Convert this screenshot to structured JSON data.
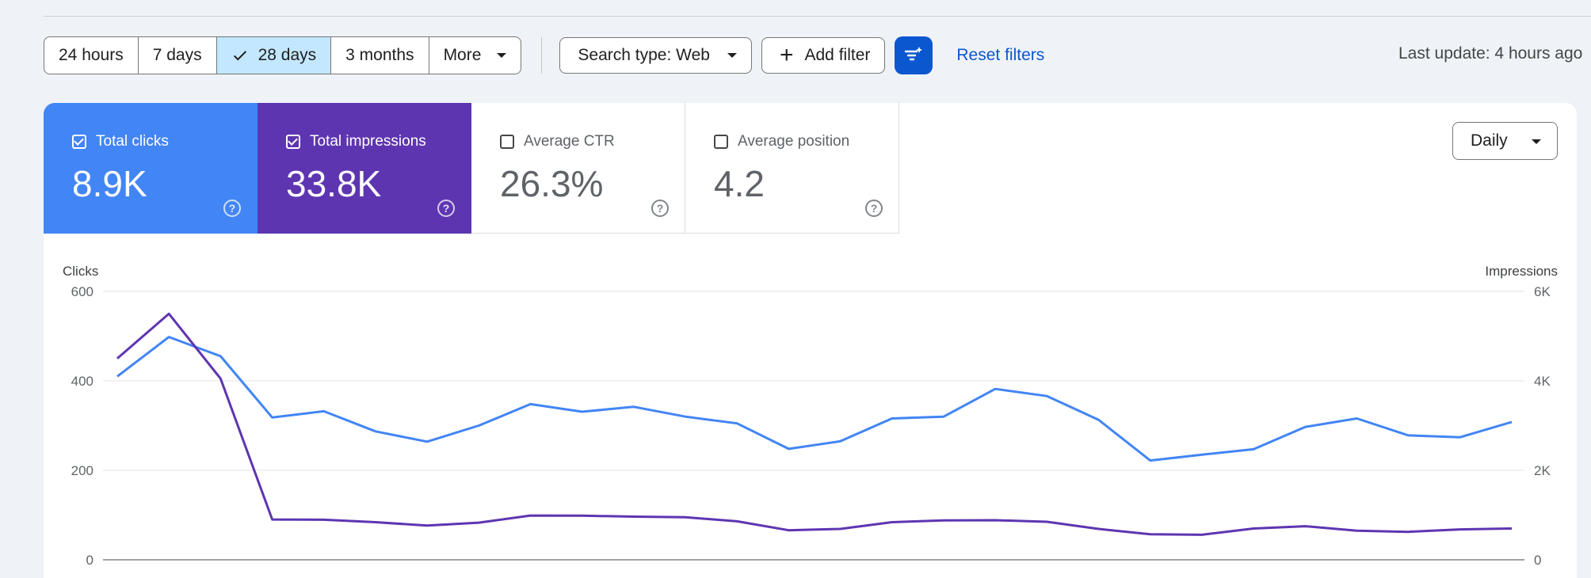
{
  "toolbar": {
    "ranges": [
      {
        "label": "24 hours",
        "active": false
      },
      {
        "label": "7 days",
        "active": false
      },
      {
        "label": "28 days",
        "active": true
      },
      {
        "label": "3 months",
        "active": false
      },
      {
        "label": "More",
        "active": false
      }
    ],
    "search_type": "Search type: Web",
    "add_filter": "Add filter",
    "reset_filters": "Reset filters",
    "last_update": "Last update: 4 hours ago"
  },
  "metrics": {
    "clicks": {
      "label": "Total clicks",
      "value": "8.9K",
      "checked": true,
      "color": "#4285f4"
    },
    "impressions": {
      "label": "Total impressions",
      "value": "33.8K",
      "checked": true,
      "color": "#5e35b1"
    },
    "ctr": {
      "label": "Average CTR",
      "value": "26.3%",
      "checked": false
    },
    "position": {
      "label": "Average position",
      "value": "4.2",
      "checked": false
    }
  },
  "granularity": "Daily",
  "chart_data": {
    "type": "line",
    "left_axis": {
      "title": "Clicks",
      "ticks": [
        "0",
        "200",
        "400",
        "600"
      ],
      "range": [
        0,
        600
      ]
    },
    "right_axis": {
      "title": "Impressions",
      "ticks": [
        "0",
        "2K",
        "4K",
        "6K"
      ],
      "range": [
        0,
        6000
      ]
    },
    "grid": true,
    "series": [
      {
        "name": "Clicks",
        "axis": "left",
        "color": "#4285f4",
        "values": [
          410,
          498,
          455,
          318,
          332,
          287,
          264,
          300,
          348,
          331,
          342,
          320,
          305,
          248,
          265,
          316,
          320,
          382,
          366,
          313,
          222,
          235,
          247,
          297,
          316,
          278,
          274,
          308
        ]
      },
      {
        "name": "Impressions",
        "axis": "right",
        "color": "#5e35b1",
        "values": [
          4500,
          5500,
          4050,
          900,
          895,
          840,
          765,
          830,
          990,
          985,
          965,
          950,
          860,
          660,
          690,
          840,
          880,
          885,
          850,
          690,
          570,
          560,
          700,
          750,
          650,
          625,
          680,
          700
        ]
      }
    ]
  }
}
